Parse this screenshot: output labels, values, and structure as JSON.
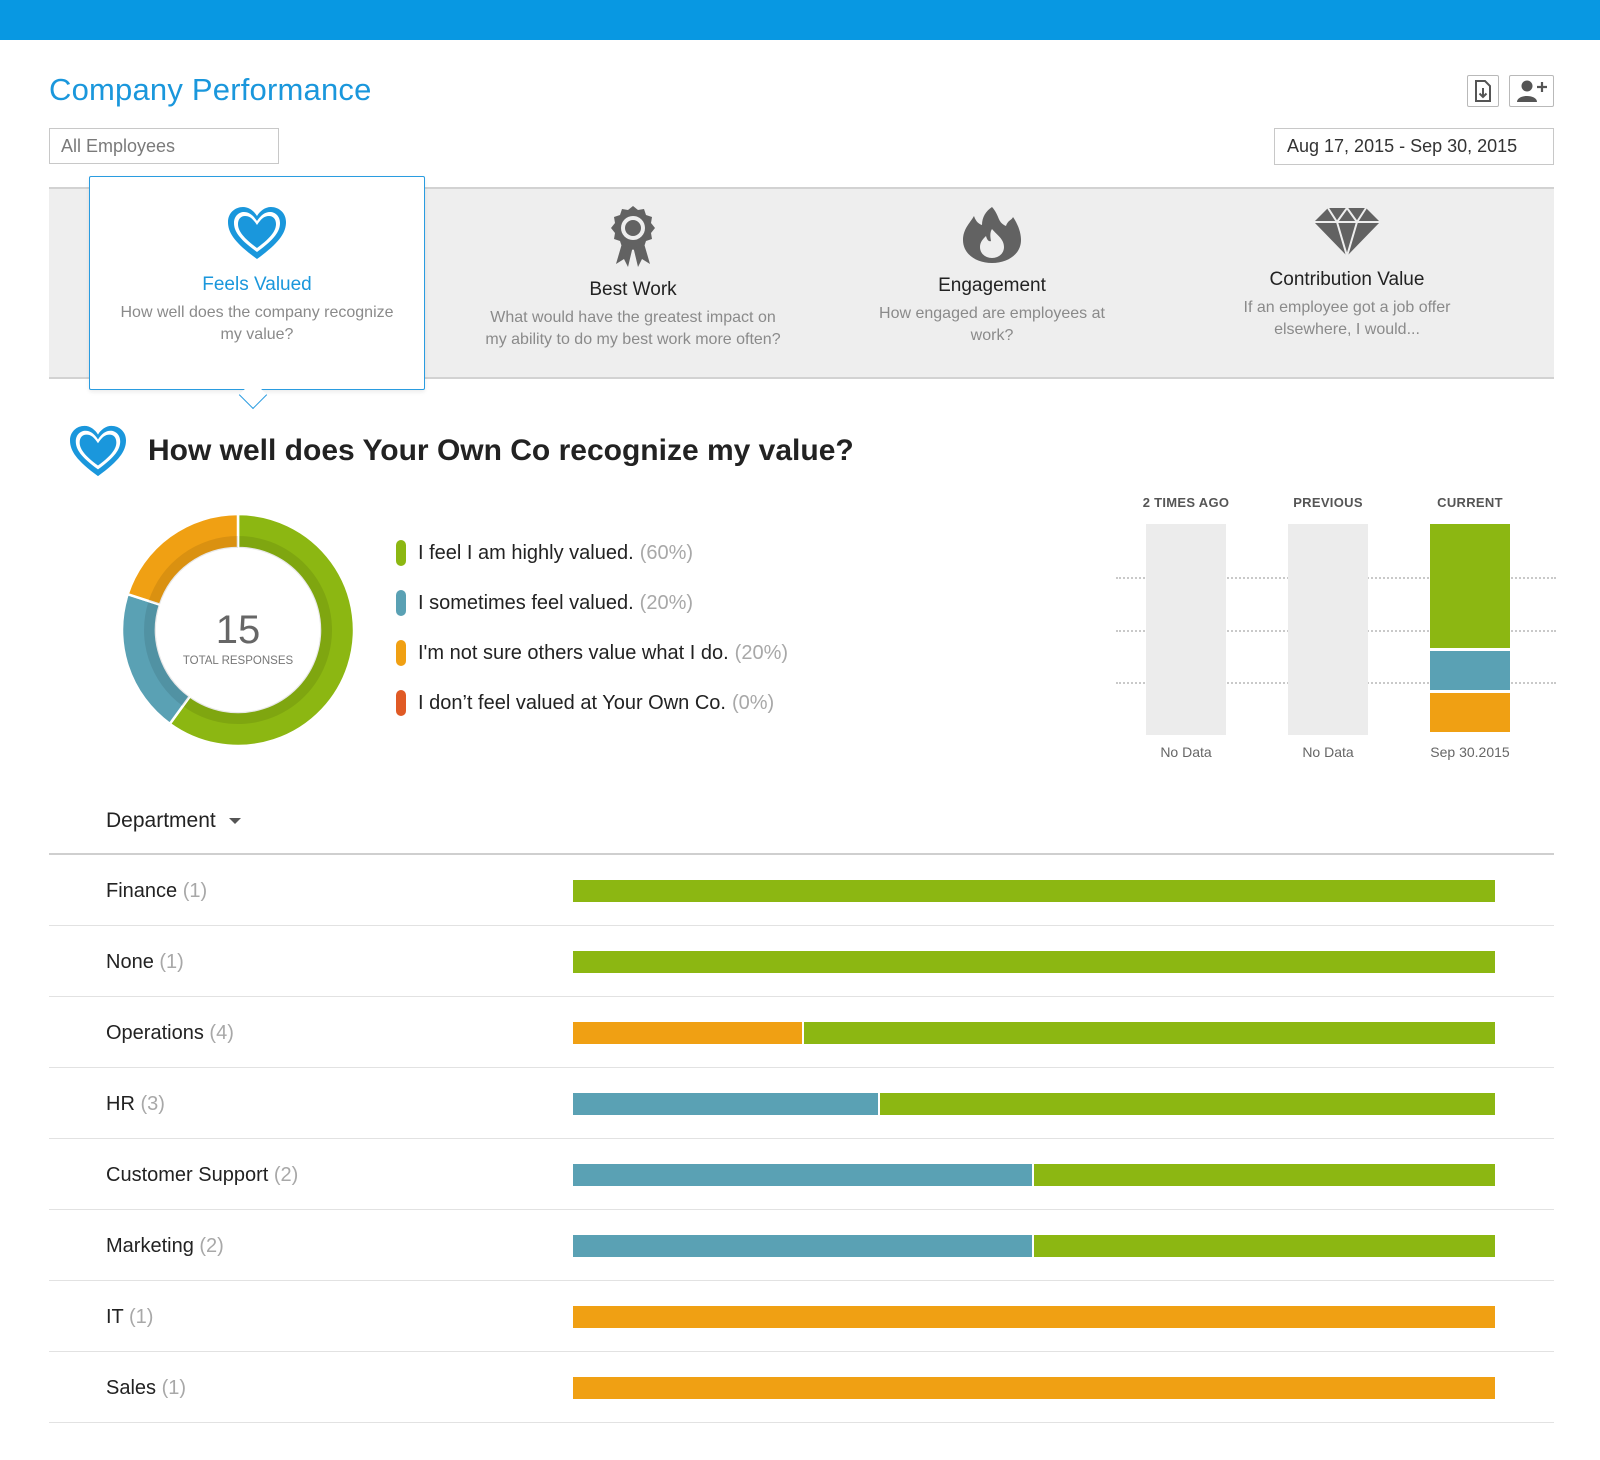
{
  "app": {
    "title": "Company Performance",
    "icons": {
      "export": "export-icon",
      "add_user": "add-user-icon"
    }
  },
  "filters": {
    "employees": "All Employees",
    "date_range": "Aug 17, 2015 - Sep 30, 2015"
  },
  "colors": {
    "accent": "#1a97dc",
    "topbar": "#0898e2",
    "highly_valued": "#8cb712",
    "sometimes_valued": "#5aa1b4",
    "not_sure": "#f0a013",
    "not_valued": "#e05a25"
  },
  "tabs": [
    {
      "title": "Feels Valued",
      "desc": "How well does the company recognize my value?",
      "icon": "heart-icon",
      "active": true
    },
    {
      "title": "Best Work",
      "desc": "What would have the greatest impact on my ability to do my best work more often?",
      "icon": "award-ribbon-icon",
      "active": false
    },
    {
      "title": "Engagement",
      "desc": "How engaged are employees at work?",
      "icon": "flame-icon",
      "active": false
    },
    {
      "title": "Contribution Value",
      "desc": "If an employee got a job offer elsewhere, I would...",
      "icon": "diamond-icon",
      "active": false
    }
  ],
  "question": {
    "title": "How well does Your Own Co recognize my value?",
    "icon": "heart-icon"
  },
  "summary": {
    "total": "15",
    "total_label": "TOTAL RESPONSES"
  },
  "answers": [
    {
      "label": "I feel I am highly valued.",
      "pct": "(60%)",
      "value": 60,
      "color": "#8cb712"
    },
    {
      "label": "I sometimes feel valued.",
      "pct": "(20%)",
      "value": 20,
      "color": "#5aa1b4"
    },
    {
      "label": "I'm not sure others value what I do.",
      "pct": "(20%)",
      "value": 20,
      "color": "#f0a013"
    },
    {
      "label": "I don’t feel valued at Your Own Co.",
      "pct": "(0%)",
      "value": 0,
      "color": "#e05a25"
    }
  ],
  "history": [
    {
      "header": "2 TIMES AGO",
      "footer": "No Data",
      "segments": []
    },
    {
      "header": "PREVIOUS",
      "footer": "No Data",
      "segments": []
    },
    {
      "header": "CURRENT",
      "footer": "Sep 30.2015",
      "segments": [
        60,
        20,
        20,
        0
      ]
    }
  ],
  "departments": {
    "header": "Department",
    "rows": [
      {
        "name": "Finance",
        "count": "(1)",
        "breakdown": {
          "not_sure": 0,
          "sometimes": 0,
          "highly": 1
        }
      },
      {
        "name": "None",
        "count": "(1)",
        "breakdown": {
          "not_sure": 0,
          "sometimes": 0,
          "highly": 1
        }
      },
      {
        "name": "Operations",
        "count": "(4)",
        "breakdown": {
          "not_sure": 1,
          "sometimes": 0,
          "highly": 3
        }
      },
      {
        "name": "HR",
        "count": "(3)",
        "breakdown": {
          "not_sure": 0,
          "sometimes": 1,
          "highly": 2
        }
      },
      {
        "name": "Customer Support",
        "count": "(2)",
        "breakdown": {
          "not_sure": 0,
          "sometimes": 1,
          "highly": 1
        }
      },
      {
        "name": "Marketing",
        "count": "(2)",
        "breakdown": {
          "not_sure": 0,
          "sometimes": 1,
          "highly": 1
        }
      },
      {
        "name": "IT",
        "count": "(1)",
        "breakdown": {
          "not_sure": 1,
          "sometimes": 0,
          "highly": 0
        }
      },
      {
        "name": "Sales",
        "count": "(1)",
        "breakdown": {
          "not_sure": 1,
          "sometimes": 0,
          "highly": 0
        }
      }
    ]
  }
}
